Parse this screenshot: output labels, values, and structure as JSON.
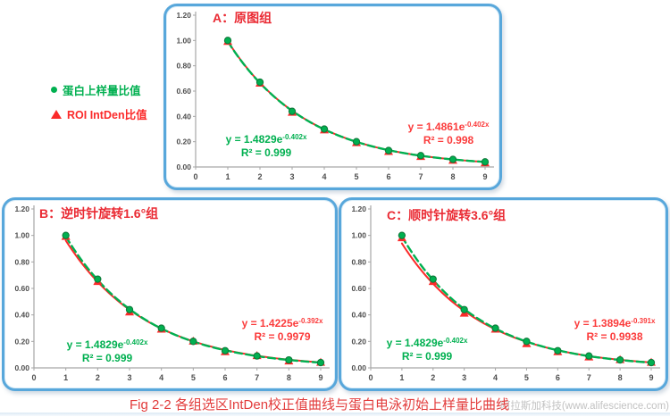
{
  "page": {
    "caption": "Fig 2-2 各组选区IntDen校正值曲线与蛋白电泳初始上样量比曲线",
    "watermark": "阿拉斯加科技(www.alifescience.com)"
  },
  "legend": {
    "items": [
      {
        "label": "蛋白上样量比值",
        "marker": "circle",
        "color": "#00b050"
      },
      {
        "label": "ROI IntDen比值",
        "marker": "triangle",
        "color": "#fb2a2a"
      }
    ]
  },
  "colors": {
    "green": "#00b050",
    "green_edge": "#0e7a3a",
    "red": "#fb2a2a",
    "frame_blue": "#58a7db",
    "axis_gray": "#a6a6a6",
    "tick_text": "#4d4d4d",
    "caption_red": "#e23b3b",
    "watermark_gray": "#c2c2c2"
  },
  "chart_data": [
    {
      "id": "A",
      "type": "line",
      "title": "A：原图组",
      "x": [
        1,
        2,
        3,
        4,
        5,
        6,
        7,
        8,
        9
      ],
      "xticks": [
        "0",
        "1",
        "2",
        "3",
        "4",
        "5",
        "6",
        "7",
        "8",
        "9"
      ],
      "yticks": [
        "0.00",
        "0.20",
        "0.40",
        "0.60",
        "0.80",
        "1.00",
        "1.20"
      ],
      "xlim": [
        0,
        9
      ],
      "ylim": [
        0,
        1.2
      ],
      "series": [
        {
          "name": "ROI IntDen比值",
          "marker": "triangle",
          "line": "solid",
          "color": "#fb2a2a",
          "values": [
            0.99,
            0.66,
            0.43,
            0.29,
            0.19,
            0.12,
            0.08,
            0.05,
            0.03
          ],
          "fit": {
            "a": 1.4861,
            "b": -0.402
          }
        },
        {
          "name": "蛋白上样量比值",
          "marker": "circle",
          "line": "dashed",
          "color": "#00b050",
          "values": [
            1.0,
            0.67,
            0.44,
            0.3,
            0.2,
            0.13,
            0.09,
            0.06,
            0.04
          ],
          "fit": {
            "a": 1.4829,
            "b": -0.402
          }
        }
      ],
      "annotations": {
        "green": {
          "eq_base": "y = 1.4829e",
          "eq_exp": "-0.402x",
          "r2": "R² = 0.999"
        },
        "red": {
          "eq_base": "y = 1.4861e",
          "eq_exp": "-0.402x",
          "r2": "R² = 0.998"
        }
      }
    },
    {
      "id": "B",
      "type": "line",
      "title": "B：逆时针旋转1.6°组",
      "x": [
        1,
        2,
        3,
        4,
        5,
        6,
        7,
        8,
        9
      ],
      "xticks": [
        "0",
        "1",
        "2",
        "3",
        "4",
        "5",
        "6",
        "7",
        "8",
        "9"
      ],
      "yticks": [
        "0.00",
        "0.20",
        "0.40",
        "0.60",
        "0.80",
        "1.00",
        "1.20"
      ],
      "xlim": [
        0,
        9
      ],
      "ylim": [
        0,
        1.2
      ],
      "series": [
        {
          "name": "ROI IntDen比值",
          "marker": "triangle",
          "line": "solid",
          "color": "#fb2a2a",
          "values": [
            0.99,
            0.65,
            0.42,
            0.29,
            0.2,
            0.12,
            0.09,
            0.05,
            0.04
          ],
          "fit": {
            "a": 1.4225,
            "b": -0.392
          }
        },
        {
          "name": "蛋白上样量比值",
          "marker": "circle",
          "line": "dashed",
          "color": "#00b050",
          "values": [
            1.0,
            0.67,
            0.44,
            0.3,
            0.2,
            0.13,
            0.09,
            0.06,
            0.04
          ],
          "fit": {
            "a": 1.4829,
            "b": -0.402
          }
        }
      ],
      "annotations": {
        "green": {
          "eq_base": "y = 1.4829e",
          "eq_exp": "-0.402x",
          "r2": "R² = 0.999"
        },
        "red": {
          "eq_base": "y = 1.4225e",
          "eq_exp": "-0.392x",
          "r2": "R² = 0.9979"
        }
      }
    },
    {
      "id": "C",
      "type": "line",
      "title": "C：顺时针旋转3.6°组",
      "x": [
        1,
        2,
        3,
        4,
        5,
        6,
        7,
        8,
        9
      ],
      "xticks": [
        "0",
        "1",
        "2",
        "3",
        "4",
        "5",
        "6",
        "7",
        "8",
        "9"
      ],
      "yticks": [
        "0.00",
        "0.20",
        "0.40",
        "0.60",
        "0.80",
        "1.00",
        "1.20"
      ],
      "xlim": [
        0,
        9
      ],
      "ylim": [
        0,
        1.2
      ],
      "series": [
        {
          "name": "ROI IntDen比值",
          "marker": "triangle",
          "line": "solid",
          "color": "#fb2a2a",
          "values": [
            0.98,
            0.65,
            0.41,
            0.29,
            0.18,
            0.12,
            0.08,
            0.06,
            0.04
          ],
          "fit": {
            "a": 1.3894,
            "b": -0.391
          }
        },
        {
          "name": "蛋白上样量比值",
          "marker": "circle",
          "line": "dashed",
          "color": "#00b050",
          "values": [
            1.0,
            0.67,
            0.44,
            0.3,
            0.2,
            0.13,
            0.09,
            0.06,
            0.04
          ],
          "fit": {
            "a": 1.4829,
            "b": -0.402
          }
        }
      ],
      "annotations": {
        "green": {
          "eq_base": "y = 1.4829e",
          "eq_exp": "-0.402x",
          "r2": "R² = 0.999"
        },
        "red": {
          "eq_base": "y = 1.3894e",
          "eq_exp": "-0.391x",
          "r2": "R² = 0.9938"
        }
      }
    }
  ]
}
